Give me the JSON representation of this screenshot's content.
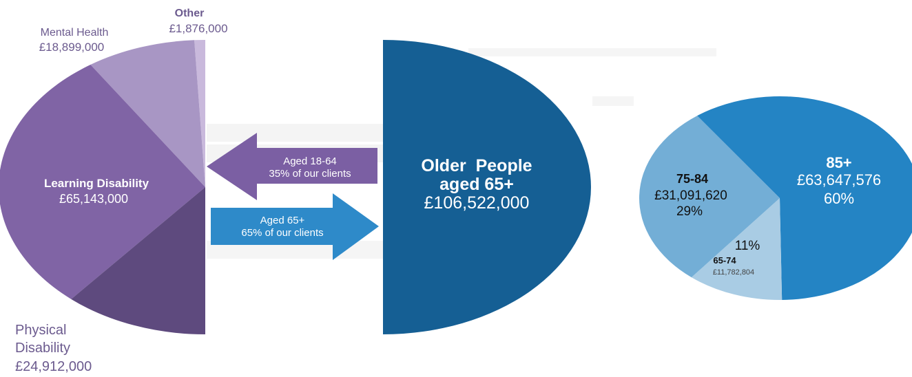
{
  "chart_data": [
    {
      "type": "pie",
      "segments": [
        {
          "label": "Other",
          "value_text": "£1,876,000",
          "value": 1876000,
          "color": "#c9b9dc"
        },
        {
          "label": "Mental Health",
          "value_text": "£18,899,000",
          "value": 18899000,
          "color": "#a896c4"
        },
        {
          "label": "Learning Disability",
          "value_text": "£65,143,000",
          "value": 65143000,
          "color": "#8064a5"
        },
        {
          "label": "Physical Disability",
          "value_text": "£24,912,000",
          "value": 24912000,
          "color": "#5e4a7e"
        }
      ],
      "note": "left half-pie, Aged 18-64 clients"
    },
    {
      "type": "pie",
      "segments": [
        {
          "label": "Older People aged 65+",
          "value_text": "£106,522,000",
          "value": 106522000,
          "color": "#155f94"
        }
      ],
      "note": "right half-pie, aged 65+"
    },
    {
      "type": "pie",
      "segments": [
        {
          "label": "85+",
          "value_text": "£63,647,576",
          "percent_text": "60%",
          "value": 63647576,
          "color": "#2484c4"
        },
        {
          "label": "65-74",
          "value_text": "£11,782,804",
          "percent_text": "11%",
          "value": 11782804,
          "color": "#a9cce4"
        },
        {
          "label": "75-84",
          "value_text": "£31,091,620",
          "percent_text": "29%",
          "value": 31091620,
          "color": "#73aed6"
        }
      ]
    }
  ],
  "labels": {
    "other": {
      "name": "Other",
      "value": "£1,876,000"
    },
    "mental_health": {
      "name": "Mental Health",
      "value": "£18,899,000"
    },
    "learning_disability": {
      "name": "Learning Disability",
      "value": "£65,143,000"
    },
    "physical_disability": {
      "line1": "Physical",
      "line2": "Disability",
      "value": "£24,912,000"
    },
    "older_people": {
      "line1": "Older  People",
      "line2": "aged 65+",
      "value": "£106,522,000"
    },
    "age_85": {
      "name": "85+",
      "value": "£63,647,576",
      "pct": "60%"
    },
    "age_75_84": {
      "name": "75-84",
      "value": "£31,091,620",
      "pct": "29%"
    },
    "age_65_74": {
      "pct": "11%",
      "name": "65-74",
      "value": "£11,782,804"
    }
  },
  "arrows": {
    "left": {
      "line1": "Aged 18-64",
      "line2": "35% of our clients",
      "color": "#7b5fa3"
    },
    "right": {
      "line1": "Aged 65+",
      "line2": "65% of our clients",
      "color": "#2e8ac9"
    }
  },
  "colors": {
    "accent_purple": "#6b5a8e",
    "accent_blue": "#155f94"
  }
}
